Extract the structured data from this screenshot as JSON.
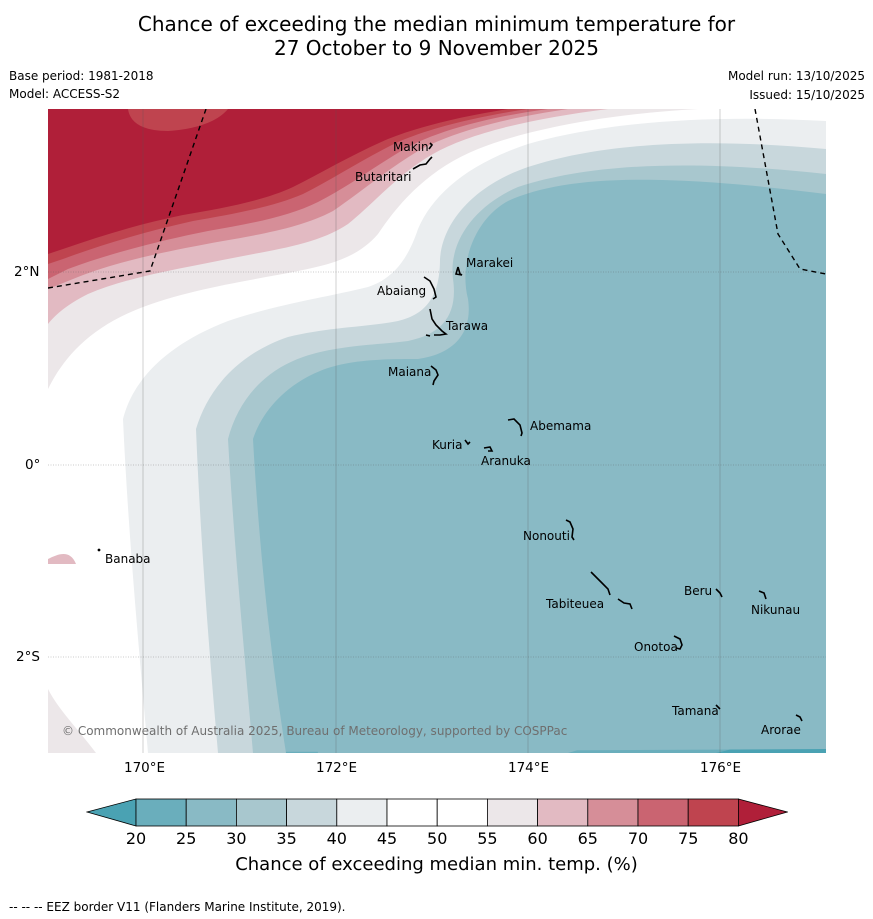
{
  "title": {
    "line1": "Chance of exceeding the median minimum temperature for",
    "line2": "27 October to 9 November 2025"
  },
  "meta": {
    "base_period": "Base period: 1981-2018",
    "model": "Model: ACCESS-S2",
    "model_run": "Model run: 13/10/2025",
    "issued": "Issued: 15/10/2025"
  },
  "axes": {
    "x_ticks": [
      "170°E",
      "172°E",
      "174°E",
      "176°E"
    ],
    "y_ticks": [
      "2°N",
      "0°",
      "2°S"
    ]
  },
  "places": [
    {
      "name": "Makin"
    },
    {
      "name": "Butaritari"
    },
    {
      "name": "Marakei"
    },
    {
      "name": "Abaiang"
    },
    {
      "name": "Tarawa"
    },
    {
      "name": "Maiana"
    },
    {
      "name": "Abemama"
    },
    {
      "name": "Kuria"
    },
    {
      "name": "Aranuka"
    },
    {
      "name": "Nonouti"
    },
    {
      "name": "Banaba"
    },
    {
      "name": "Tabiteuea"
    },
    {
      "name": "Beru"
    },
    {
      "name": "Nikunau"
    },
    {
      "name": "Onotoa"
    },
    {
      "name": "Tamana"
    },
    {
      "name": "Arorae"
    }
  ],
  "copyright": "© Commonwealth of Australia 2025, Bureau of Meteorology, supported by COSPPac",
  "colorbar": {
    "ticks": [
      "20",
      "25",
      "30",
      "35",
      "40",
      "45",
      "50",
      "55",
      "60",
      "65",
      "70",
      "75",
      "80"
    ],
    "label": "Chance of exceeding median min. temp. (%)",
    "colors": [
      "#4aa2b3",
      "#6aaebc",
      "#89bac5",
      "#a8c7ce",
      "#c8d7dc",
      "#ebeef0",
      "#ffffff",
      "#ffffff",
      "#ece7e9",
      "#e2bac2",
      "#d68e98",
      "#ca6471",
      "#bf444f",
      "#b01f39"
    ]
  },
  "footer": "--  --  -- EEZ border V11 (Flanders Marine Institute, 2019)."
}
